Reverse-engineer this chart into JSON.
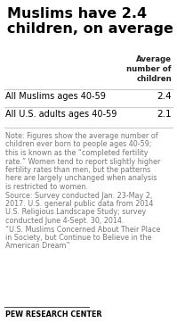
{
  "title": "Muslims have 2.4\nchildren, on average",
  "col_header": "Average\nnumber of\nchildren",
  "rows": [
    {
      "label": "All Muslims ages 40-59",
      "value": "2.4"
    },
    {
      "label": "All U.S. adults ages 40-59",
      "value": "2.1"
    }
  ],
  "note_lines": [
    "Note: Figures show the average number of",
    "children ever born to people ages 40-59;",
    "this is known as the “completed fertility",
    "rate.” Women tend to report slightly higher",
    "fertility rates than men, but the patterns",
    "here are largely unchanged when analysis",
    "is restricted to women.",
    "Source: Survey conducted Jan. 23-May 2,",
    "2017. U.S. general public data from 2014",
    "U.S. Religious Landscape Study; survey",
    "conducted June 4-Sept. 30, 2014.",
    "“U.S. Muslims Concerned About Their Place",
    "in Society, but Continue to Believe in the",
    "American Dream”"
  ],
  "footer": "PEW RESEARCH CENTER",
  "bg_color": "#ffffff",
  "title_color": "#000000",
  "header_color": "#222222",
  "row_label_color": "#000000",
  "value_color": "#000000",
  "note_color": "#777777",
  "footer_color": "#000000",
  "line_color": "#cccccc",
  "footer_line_color": "#555555"
}
